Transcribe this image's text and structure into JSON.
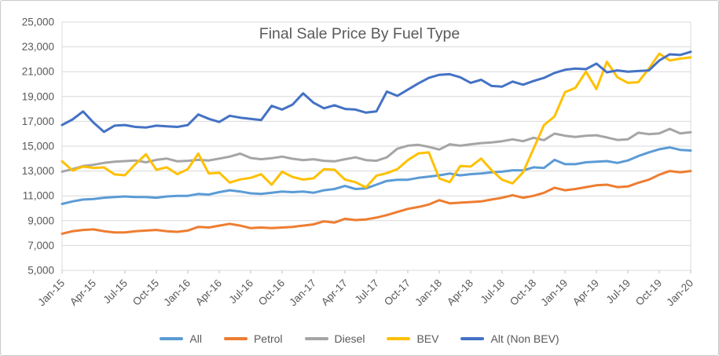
{
  "chart_data": {
    "type": "line",
    "title": "Final Sale Price By Fuel Type",
    "grid": true,
    "legend_position": "bottom",
    "y_axis": {
      "min": 5000,
      "max": 25000,
      "step": 2000
    },
    "y_tick_labels": [
      "5,000",
      "7,000",
      "9,000",
      "11,000",
      "13,000",
      "15,000",
      "17,000",
      "19,000",
      "21,000",
      "23,000",
      "25,000"
    ],
    "x_tick_labels": [
      "Jan-15",
      "Apr-15",
      "Jul-15",
      "Oct-15",
      "Jan-16",
      "Apr-16",
      "Jul-16",
      "Oct-16",
      "Jan-17",
      "Apr-17",
      "Jul-17",
      "Oct-17",
      "Jan-18",
      "Apr-18",
      "Jul-18",
      "Oct-18",
      "Jan-19",
      "Apr-19",
      "Jul-19",
      "Oct-19",
      "Jan-20"
    ],
    "x_is_monthly": true,
    "series": [
      {
        "name": "All",
        "color": "#5B9BD5",
        "values": [
          10350,
          10550,
          10700,
          10750,
          10850,
          10900,
          10950,
          10900,
          10900,
          10850,
          10950,
          11000,
          11000,
          11150,
          11100,
          11300,
          11450,
          11350,
          11200,
          11150,
          11250,
          11350,
          11300,
          11350,
          11250,
          11450,
          11550,
          11800,
          11550,
          11600,
          11900,
          12200,
          12300,
          12300,
          12450,
          12550,
          12650,
          12800,
          12650,
          12750,
          12800,
          12900,
          12950,
          13050,
          13050,
          13300,
          13250,
          13900,
          13550,
          13550,
          13700,
          13750,
          13800,
          13650,
          13850,
          14200,
          14500,
          14750,
          14900,
          14700,
          14650
        ]
      },
      {
        "name": "Petrol",
        "color": "#ED7D31",
        "values": [
          7950,
          8150,
          8250,
          8300,
          8150,
          8050,
          8050,
          8150,
          8200,
          8250,
          8150,
          8100,
          8200,
          8500,
          8450,
          8600,
          8750,
          8600,
          8400,
          8450,
          8400,
          8450,
          8500,
          8600,
          8700,
          8950,
          8850,
          9150,
          9050,
          9100,
          9250,
          9450,
          9700,
          9950,
          10100,
          10300,
          10650,
          10400,
          10450,
          10500,
          10550,
          10700,
          10850,
          11050,
          10850,
          11000,
          11250,
          11650,
          11450,
          11550,
          11700,
          11850,
          11900,
          11700,
          11750,
          12050,
          12300,
          12700,
          13000,
          12900,
          13000
        ]
      },
      {
        "name": "Diesel",
        "color": "#A5A5A5",
        "values": [
          12950,
          13150,
          13400,
          13500,
          13650,
          13750,
          13800,
          13850,
          13700,
          13900,
          14000,
          13780,
          13820,
          13900,
          13850,
          14000,
          14160,
          14400,
          14050,
          13950,
          14030,
          14160,
          13990,
          13880,
          13950,
          13820,
          13780,
          13950,
          14100,
          13880,
          13820,
          14100,
          14800,
          15040,
          15110,
          14940,
          14730,
          15150,
          15040,
          15150,
          15250,
          15300,
          15400,
          15550,
          15400,
          15680,
          15490,
          16010,
          15840,
          15740,
          15840,
          15880,
          15700,
          15500,
          15550,
          16080,
          15970,
          16030,
          16390,
          16030,
          16120
        ]
      },
      {
        "name": "BEV",
        "color": "#FFC000",
        "values": [
          13780,
          13040,
          13360,
          13250,
          13290,
          12730,
          12660,
          13550,
          14350,
          13100,
          13300,
          12750,
          13150,
          14400,
          12800,
          12870,
          12070,
          12320,
          12450,
          12740,
          11890,
          12940,
          12520,
          12310,
          12410,
          13150,
          13100,
          12310,
          12100,
          11680,
          12620,
          12830,
          13150,
          13880,
          14410,
          14500,
          12400,
          12100,
          13400,
          13360,
          14000,
          13050,
          12300,
          12000,
          12900,
          14800,
          16700,
          17400,
          19350,
          19700,
          21000,
          19600,
          21800,
          20550,
          20100,
          20150,
          21250,
          22450,
          21900,
          22050,
          22150
        ]
      },
      {
        "name": "Alt (Non BEV)",
        "color": "#4472C4",
        "values": [
          16700,
          17150,
          17800,
          16900,
          16150,
          16650,
          16700,
          16550,
          16500,
          16650,
          16600,
          16550,
          16700,
          17550,
          17200,
          16950,
          17450,
          17300,
          17200,
          17100,
          18250,
          17950,
          18350,
          19250,
          18500,
          18050,
          18300,
          18000,
          17950,
          17700,
          17800,
          19400,
          19050,
          19550,
          20050,
          20500,
          20750,
          20800,
          20550,
          20100,
          20350,
          19850,
          19800,
          20200,
          19950,
          20250,
          20500,
          20900,
          21150,
          21250,
          21200,
          21650,
          20950,
          21100,
          21000,
          21050,
          21100,
          21900,
          22400,
          22350,
          22600
        ]
      }
    ],
    "colors": {
      "title_text": "#595959",
      "axis_text": "#595959",
      "gridline": "#D9D9D9",
      "frame_border": "#C9C9C9"
    }
  }
}
